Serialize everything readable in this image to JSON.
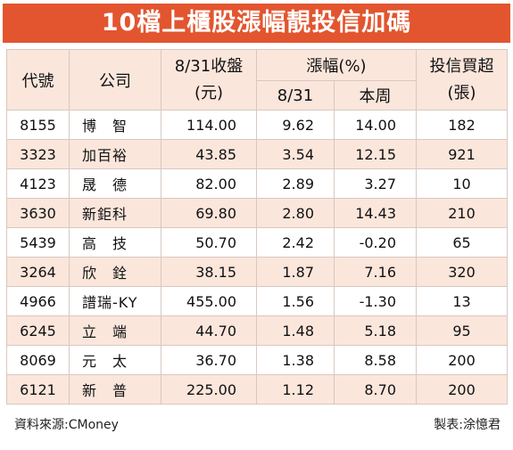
{
  "title": "10檔上櫃股漲幅靚投信加碼",
  "headers": {
    "code": "代號",
    "company": "公司",
    "close_line1": "8/31收盤",
    "close_line2": "(元)",
    "change": "漲幅(%)",
    "change_day": "8/31",
    "change_week": "本周",
    "trust_line1": "投信買超",
    "trust_line2": "(張)"
  },
  "rows": [
    {
      "code": "8155",
      "company": "博　智",
      "close": "114.00",
      "day": "9.62",
      "week": "14.00",
      "trust": "182"
    },
    {
      "code": "3323",
      "company": "加百裕",
      "close": "43.85",
      "day": "3.54",
      "week": "12.15",
      "trust": "921"
    },
    {
      "code": "4123",
      "company": "晟　德",
      "close": "82.00",
      "day": "2.89",
      "week": "3.27",
      "trust": "10"
    },
    {
      "code": "3630",
      "company": "新鉅科",
      "close": "69.80",
      "day": "2.80",
      "week": "14.43",
      "trust": "210"
    },
    {
      "code": "5439",
      "company": "高　技",
      "close": "50.70",
      "day": "2.42",
      "week": "-0.20",
      "trust": "65"
    },
    {
      "code": "3264",
      "company": "欣　銓",
      "close": "38.15",
      "day": "1.87",
      "week": "7.16",
      "trust": "320"
    },
    {
      "code": "4966",
      "company": "譜瑞-KY",
      "close": "455.00",
      "day": "1.56",
      "week": "-1.30",
      "trust": "13"
    },
    {
      "code": "6245",
      "company": "立　端",
      "close": "44.70",
      "day": "1.48",
      "week": "5.18",
      "trust": "95"
    },
    {
      "code": "8069",
      "company": "元　太",
      "close": "36.70",
      "day": "1.38",
      "week": "8.58",
      "trust": "200"
    },
    {
      "code": "6121",
      "company": "新　普",
      "close": "225.00",
      "day": "1.12",
      "week": "8.70",
      "trust": "200"
    }
  ],
  "footer": {
    "source": "資料來源:CMoney",
    "maker": "製表:涂憶君"
  },
  "colors": {
    "title_bg": "#e2552f",
    "stripe": "#fbe6dc"
  }
}
